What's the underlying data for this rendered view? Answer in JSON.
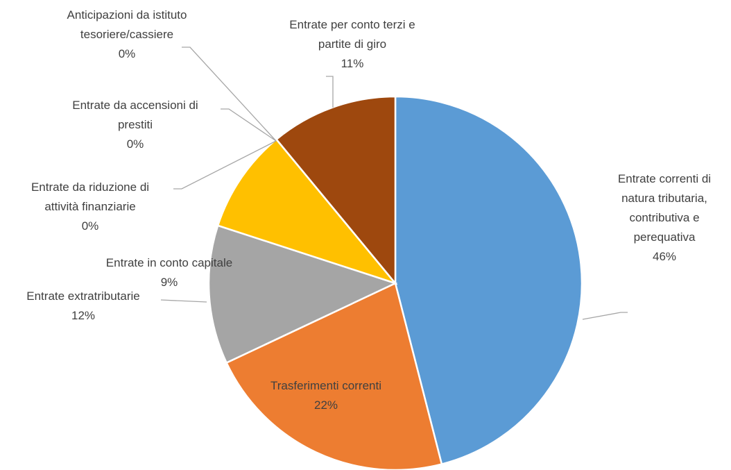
{
  "chart_data": {
    "type": "pie",
    "categories": [
      "Entrate correnti di natura tributaria, contributiva e perequativa",
      "Trasferimenti correnti",
      "Entrate extratributarie",
      "Entrate in conto capitale",
      "Entrate da riduzione di attività finanziarie",
      "Entrate da accensioni di prestiti",
      "Anticipazioni da istituto tesoriere/cassiere",
      "Entrate per conto terzi e partite di giro"
    ],
    "values": [
      46,
      22,
      12,
      9,
      0,
      0,
      0,
      11
    ],
    "value_labels": [
      "46%",
      "22%",
      "12%",
      "9%",
      "0%",
      "0%",
      "0%",
      "11%"
    ],
    "colors": [
      "#5b9bd5",
      "#ed7d31",
      "#a5a5a5",
      "#ffc000",
      "#4472c4",
      "#70ad47",
      "#264478",
      "#9e480e"
    ]
  }
}
